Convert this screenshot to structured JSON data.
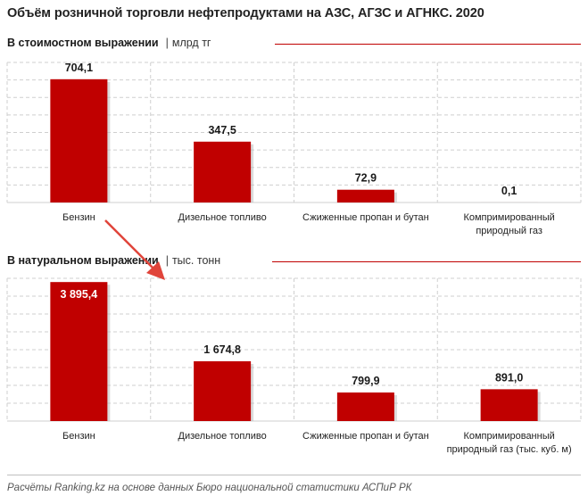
{
  "title": "Объём розничной торговли нефтепродуктами на АЗС, АГЗС и АГНКС. 2020",
  "section_value": {
    "label": "В стоимостном  выражении",
    "separator": "|",
    "unit": "млрд тг"
  },
  "section_volume": {
    "label": "В натуральном  выражении",
    "separator": "|",
    "unit": "тыс. тонн"
  },
  "footnote": "Расчёты Ranking.kz на основе данных Бюро национальной статистики АСПиР РК",
  "colors": {
    "bar": "#c00000",
    "accent_line": "#c00000",
    "grid": "#cfcfcf",
    "arrow": "#e0443a"
  },
  "chart_data": [
    {
      "type": "bar",
      "title": "В стоимостном  выражении",
      "unit": "млрд тг",
      "categories": [
        [
          "Бензин"
        ],
        [
          "Дизельное топливо"
        ],
        [
          "Сжиженные пропан и бутан"
        ],
        [
          "Компримированный",
          "природный газ"
        ]
      ],
      "values": [
        704.1,
        347.5,
        72.9,
        0.1
      ],
      "value_labels": [
        "704,1",
        "347,5",
        "72,9",
        "0,1"
      ],
      "label_inside": [
        false,
        false,
        false,
        false
      ],
      "ylim": [
        0,
        800
      ],
      "grid": true
    },
    {
      "type": "bar",
      "title": "В натуральном  выражении",
      "unit": "тыс. тонн",
      "categories": [
        [
          "Бензин"
        ],
        [
          "Дизельное топливо"
        ],
        [
          "Сжиженные пропан и бутан"
        ],
        [
          "Компримированный",
          "природный газ (тыс. куб. м)"
        ]
      ],
      "values": [
        3895.4,
        1674.8,
        799.9,
        891.0
      ],
      "value_labels": [
        "3 895,4",
        "1 674,8",
        "799,9",
        "891,0"
      ],
      "label_inside": [
        true,
        false,
        false,
        false
      ],
      "ylim": [
        0,
        4000
      ],
      "grid": true
    }
  ]
}
